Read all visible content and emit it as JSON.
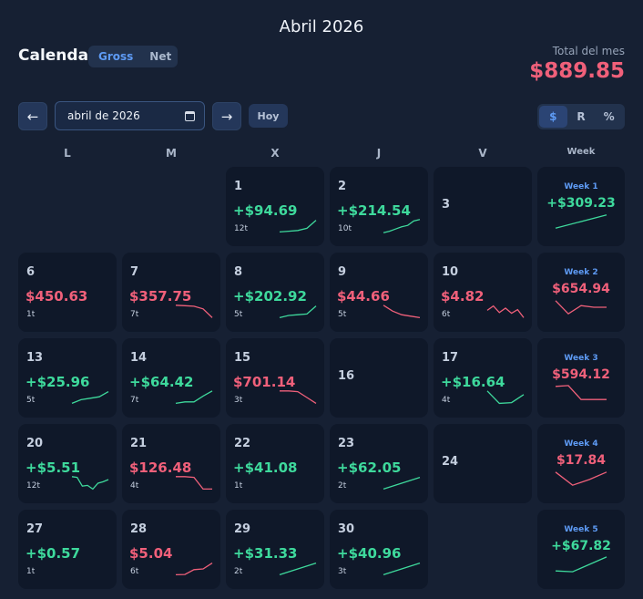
{
  "header": {
    "title": "Abril 2026",
    "calendar_label": "Calendar",
    "mode_options": [
      "Gross",
      "Net"
    ],
    "mode_active": "Gross",
    "total_label": "Total del mes",
    "total_value": "$889.85"
  },
  "toolbar": {
    "prev_label": "←",
    "next_label": "→",
    "date_value": "abril de 2026",
    "today_label": "Hoy",
    "unit_options": [
      "$",
      "R",
      "%"
    ],
    "unit_active": "$"
  },
  "weekdays": [
    "L",
    "M",
    "X",
    "J",
    "V",
    "Week"
  ],
  "days": [
    {
      "day": "1",
      "col": 2,
      "row": 0,
      "pnl": "+$94.69",
      "sign": "pos",
      "trades": "12t",
      "spark": [
        0.1,
        0.15,
        0.2,
        0.35,
        0.9
      ]
    },
    {
      "day": "2",
      "col": 3,
      "row": 0,
      "pnl": "+$214.54",
      "sign": "pos",
      "trades": "10t",
      "spark": [
        0.05,
        0.15,
        0.3,
        0.45,
        0.55,
        0.85,
        0.95
      ]
    },
    {
      "day": "3",
      "col": 4,
      "row": 0,
      "pnl": "",
      "sign": "none",
      "trades": "",
      "spark": []
    },
    {
      "day": "6",
      "col": 0,
      "row": 1,
      "pnl": "$450.63",
      "sign": "neg",
      "trades": "1t",
      "spark": []
    },
    {
      "day": "7",
      "col": 1,
      "row": 1,
      "pnl": "$357.75",
      "sign": "neg",
      "trades": "7t",
      "spark": [
        0.95,
        0.92,
        0.88,
        0.7,
        0.1
      ]
    },
    {
      "day": "8",
      "col": 2,
      "row": 1,
      "pnl": "+$202.92",
      "sign": "pos",
      "trades": "5t",
      "spark": [
        0.1,
        0.25,
        0.3,
        0.35,
        0.9
      ]
    },
    {
      "day": "9",
      "col": 3,
      "row": 1,
      "pnl": "$44.66",
      "sign": "neg",
      "trades": "5t",
      "spark": [
        0.95,
        0.55,
        0.3,
        0.2,
        0.1
      ]
    },
    {
      "day": "10",
      "col": 4,
      "row": 1,
      "pnl": "$4.82",
      "sign": "neg",
      "trades": "6t",
      "spark": [
        0.6,
        0.9,
        0.45,
        0.75,
        0.4,
        0.65,
        0.1
      ]
    },
    {
      "day": "13",
      "col": 0,
      "row": 2,
      "pnl": "+$25.96",
      "sign": "pos",
      "trades": "5t",
      "spark": [
        0.1,
        0.35,
        0.45,
        0.55,
        0.9
      ]
    },
    {
      "day": "14",
      "col": 1,
      "row": 2,
      "pnl": "+$64.42",
      "sign": "pos",
      "trades": "7t",
      "spark": [
        0.1,
        0.2,
        0.2,
        0.6,
        0.95
      ]
    },
    {
      "day": "15",
      "col": 2,
      "row": 2,
      "pnl": "$701.14",
      "sign": "neg",
      "trades": "3t",
      "spark": [
        0.95,
        0.95,
        0.9,
        0.5,
        0.1
      ]
    },
    {
      "day": "16",
      "col": 3,
      "row": 2,
      "pnl": "",
      "sign": "none",
      "trades": "",
      "spark": []
    },
    {
      "day": "17",
      "col": 4,
      "row": 2,
      "pnl": "+$16.64",
      "sign": "pos",
      "trades": "4t",
      "spark": [
        0.95,
        0.1,
        0.15,
        0.7
      ]
    },
    {
      "day": "20",
      "col": 0,
      "row": 3,
      "pnl": "+$5.51",
      "sign": "pos",
      "trades": "12t",
      "spark": [
        0.95,
        0.9,
        0.3,
        0.35,
        0.1,
        0.5,
        0.6,
        0.75
      ]
    },
    {
      "day": "21",
      "col": 1,
      "row": 3,
      "pnl": "$126.48",
      "sign": "neg",
      "trades": "4t",
      "spark": [
        0.95,
        0.95,
        0.9,
        0.1,
        0.1
      ]
    },
    {
      "day": "22",
      "col": 2,
      "row": 3,
      "pnl": "+$41.08",
      "sign": "pos",
      "trades": "1t",
      "spark": []
    },
    {
      "day": "23",
      "col": 3,
      "row": 3,
      "pnl": "+$62.05",
      "sign": "pos",
      "trades": "2t",
      "spark": [
        0.1,
        0.9
      ]
    },
    {
      "day": "24",
      "col": 4,
      "row": 3,
      "pnl": "",
      "sign": "none",
      "trades": "",
      "spark": []
    },
    {
      "day": "27",
      "col": 0,
      "row": 4,
      "pnl": "+$0.57",
      "sign": "pos",
      "trades": "1t",
      "spark": []
    },
    {
      "day": "28",
      "col": 1,
      "row": 4,
      "pnl": "$5.04",
      "sign": "neg",
      "trades": "6t",
      "spark": [
        0.1,
        0.12,
        0.45,
        0.5,
        0.9
      ]
    },
    {
      "day": "29",
      "col": 2,
      "row": 4,
      "pnl": "+$31.33",
      "sign": "pos",
      "trades": "2t",
      "spark": [
        0.1,
        0.9
      ]
    },
    {
      "day": "30",
      "col": 3,
      "row": 4,
      "pnl": "+$40.96",
      "sign": "pos",
      "trades": "3t",
      "spark": [
        0.1,
        0.5,
        0.9
      ]
    }
  ],
  "weeks": [
    {
      "label": "Week 1",
      "row": 0,
      "pnl": "+$309.23",
      "sign": "pos",
      "spark": [
        0.1,
        0.9
      ]
    },
    {
      "label": "Week 2",
      "row": 1,
      "pnl": "$654.94",
      "sign": "neg",
      "spark": [
        0.9,
        0.1,
        0.6,
        0.5,
        0.5
      ]
    },
    {
      "label": "Week 3",
      "row": 2,
      "pnl": "$594.12",
      "sign": "neg",
      "spark": [
        0.9,
        0.95,
        0.1,
        0.1,
        0.1
      ]
    },
    {
      "label": "Week 4",
      "row": 3,
      "pnl": "$17.84",
      "sign": "neg",
      "spark": [
        0.9,
        0.1,
        0.45,
        0.9
      ]
    },
    {
      "label": "Week 5",
      "row": 4,
      "pnl": "+$67.82",
      "sign": "pos",
      "spark": [
        0.1,
        0.05,
        0.5,
        0.95
      ]
    }
  ],
  "colors": {
    "positive": "#3ed99c",
    "negative": "#f0607a",
    "accent": "#5e9bf5",
    "background": "#162033",
    "cell": "#0f1829"
  }
}
